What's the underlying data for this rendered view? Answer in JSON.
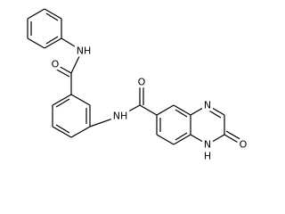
{
  "atoms": [
    {
      "label": "NH"
    },
    {
      "label": "O"
    },
    {
      "label": "NH"
    },
    {
      "label": "O"
    },
    {
      "label": "N"
    },
    {
      "label": "N"
    },
    {
      "label": "H"
    },
    {
      "label": "O"
    }
  ]
}
